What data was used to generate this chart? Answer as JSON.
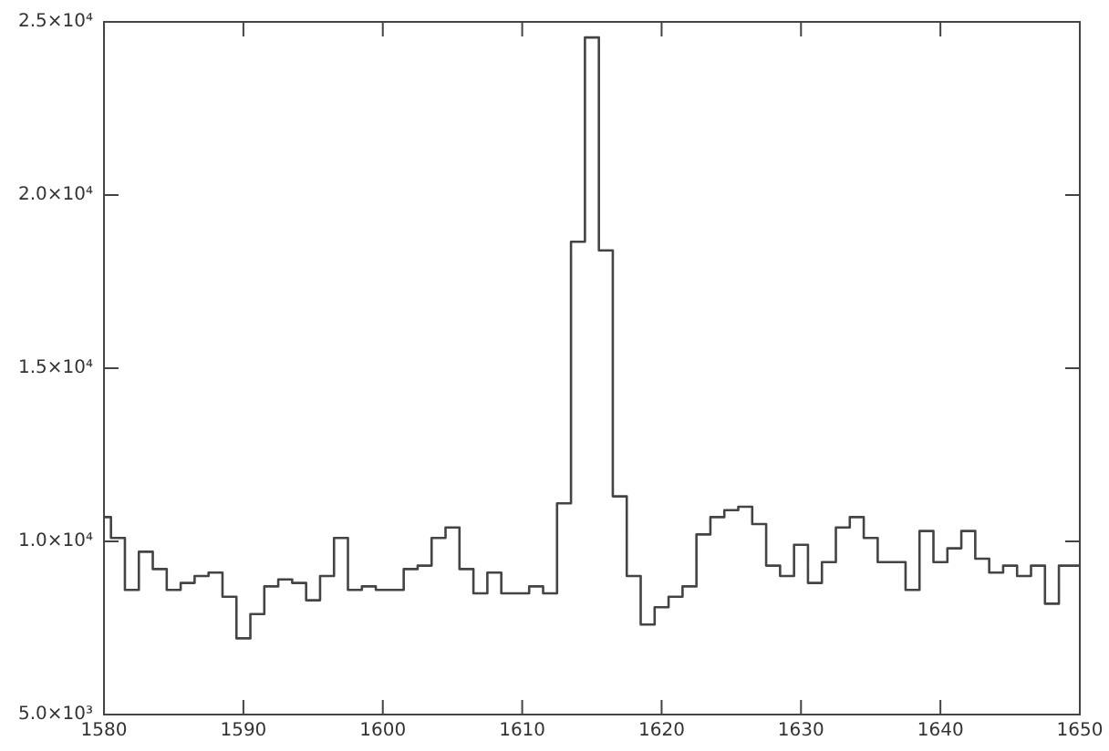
{
  "chart_data": {
    "type": "step",
    "x": [
      1580,
      1581,
      1582,
      1583,
      1584,
      1585,
      1586,
      1587,
      1588,
      1589,
      1590,
      1591,
      1592,
      1593,
      1594,
      1595,
      1596,
      1597,
      1598,
      1599,
      1600,
      1601,
      1602,
      1603,
      1604,
      1605,
      1606,
      1607,
      1608,
      1609,
      1610,
      1611,
      1612,
      1613,
      1614,
      1615,
      1616,
      1617,
      1618,
      1619,
      1620,
      1621,
      1622,
      1623,
      1624,
      1625,
      1626,
      1627,
      1628,
      1629,
      1630,
      1631,
      1632,
      1633,
      1634,
      1635,
      1636,
      1637,
      1638,
      1639,
      1640,
      1641,
      1642,
      1643,
      1644,
      1645,
      1646,
      1647,
      1648,
      1649,
      1650
    ],
    "series": [
      {
        "color": "#444444",
        "values": [
          10700,
          10100,
          8600,
          9700,
          9200,
          8600,
          8800,
          9000,
          9100,
          8400,
          7200,
          7900,
          8700,
          8900,
          8800,
          8300,
          9000,
          10100,
          8600,
          8700,
          8600,
          8600,
          9200,
          9300,
          10100,
          10400,
          9200,
          8500,
          9100,
          8500,
          8500,
          8700,
          8500,
          11100,
          18650,
          24550,
          18400,
          11300,
          9000,
          7600,
          8100,
          8400,
          8700,
          10200,
          10700,
          10900,
          11000,
          10500,
          9300,
          9000,
          9900,
          8800,
          9400,
          10400,
          10700,
          10100,
          9400,
          9400,
          8600,
          10300,
          9400,
          9800,
          10300,
          9500,
          9100,
          9300,
          9000,
          9300,
          8200,
          9300,
          9300
        ]
      }
    ],
    "xlim": [
      1580,
      1650
    ],
    "xticks": [
      1580,
      1590,
      1600,
      1610,
      1620,
      1630,
      1640,
      1650
    ],
    "ylim": [
      5000,
      25000
    ],
    "yticks": [
      {
        "value": 5000,
        "label": "5.0×10³"
      },
      {
        "value": 10000,
        "label": "1.0×10⁴"
      },
      {
        "value": 15000,
        "label": "1.5×10⁴"
      },
      {
        "value": 20000,
        "label": "2.0×10⁴"
      },
      {
        "value": 25000,
        "label": "2.5×10⁴"
      }
    ],
    "grid": false,
    "legend": false
  }
}
